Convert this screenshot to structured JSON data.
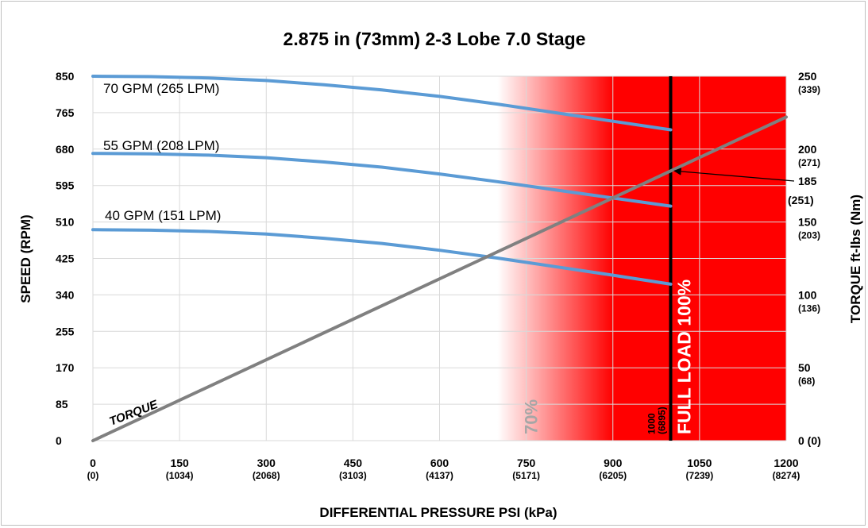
{
  "chart_data": {
    "type": "line",
    "title": "2.875 in (73mm) 2-3 Lobe 7.0 Stage",
    "xlabel": "DIFFERENTIAL PRESSURE PSI (kPa)",
    "ylabel": "SPEED (RPM)",
    "y2label": "TORQUE ft-lbs (Nm)",
    "xlim": [
      0,
      1200
    ],
    "ylim": [
      0,
      850
    ],
    "y2lim": [
      0,
      250
    ],
    "grid": true,
    "x_ticks": [
      {
        "value": 0,
        "label": "0",
        "sub": "(0)"
      },
      {
        "value": 150,
        "label": "150",
        "sub": "(1034)"
      },
      {
        "value": 300,
        "label": "300",
        "sub": "(2068)"
      },
      {
        "value": 450,
        "label": "450",
        "sub": "(3103)"
      },
      {
        "value": 600,
        "label": "600",
        "sub": "(4137)"
      },
      {
        "value": 750,
        "label": "750",
        "sub": "(5171)"
      },
      {
        "value": 900,
        "label": "900",
        "sub": "(6205)"
      },
      {
        "value": 1050,
        "label": "1050",
        "sub": "(7239)"
      },
      {
        "value": 1200,
        "label": "1200",
        "sub": "(8274)"
      }
    ],
    "y_ticks": [
      "0",
      "85",
      "170",
      "255",
      "340",
      "425",
      "510",
      "595",
      "680",
      "765",
      "850"
    ],
    "y2_ticks": [
      {
        "value": 0,
        "label": "0 (0)",
        "sub": ""
      },
      {
        "value": 50,
        "label": "50",
        "sub": "(68)"
      },
      {
        "value": 100,
        "label": "100",
        "sub": "(136)"
      },
      {
        "value": 150,
        "label": "150",
        "sub": "(203)"
      },
      {
        "value": 200,
        "label": "200",
        "sub": "(271)"
      },
      {
        "value": 250,
        "label": "250",
        "sub": "(339)"
      }
    ],
    "series": [
      {
        "name": "70 GPM (265 LPM)",
        "axis": "speed",
        "color": "#5b9bd5",
        "x": [
          0,
          100,
          200,
          300,
          400,
          500,
          600,
          700,
          800,
          900,
          1000
        ],
        "y": [
          850,
          849,
          846,
          840,
          830,
          818,
          803,
          785,
          765,
          745,
          725
        ]
      },
      {
        "name": "55 GPM (208 LPM)",
        "axis": "speed",
        "color": "#5b9bd5",
        "x": [
          0,
          100,
          200,
          300,
          400,
          500,
          600,
          700,
          800,
          900,
          1000
        ],
        "y": [
          670,
          669,
          666,
          660,
          650,
          638,
          622,
          604,
          585,
          566,
          547
        ]
      },
      {
        "name": "40 GPM (151 LPM)",
        "axis": "speed",
        "color": "#5b9bd5",
        "x": [
          0,
          100,
          200,
          300,
          400,
          500,
          600,
          700,
          800,
          900,
          1000
        ],
        "y": [
          492,
          491,
          488,
          482,
          472,
          460,
          444,
          426,
          406,
          386,
          365
        ]
      },
      {
        "name": "TORQUE",
        "axis": "torque",
        "color": "#808080",
        "x": [
          0,
          1200
        ],
        "y": [
          0,
          222
        ]
      }
    ],
    "annotations": {
      "pct70": "70%",
      "full_load": "FULL LOAD 100%",
      "full_load_x": 1000,
      "full_load_tick": "1000",
      "full_load_tick_sub": "(6895)",
      "torque_at_full_load": "185",
      "torque_at_full_load_sub": "(251)",
      "torque_marker_value": 185,
      "zone_start_x": 700
    },
    "colors": {
      "zone": "#ff0000",
      "full_load_line": "#000000",
      "grid": "#d9d9d9",
      "torque": "#808080",
      "speed": "#5b9bd5"
    }
  }
}
